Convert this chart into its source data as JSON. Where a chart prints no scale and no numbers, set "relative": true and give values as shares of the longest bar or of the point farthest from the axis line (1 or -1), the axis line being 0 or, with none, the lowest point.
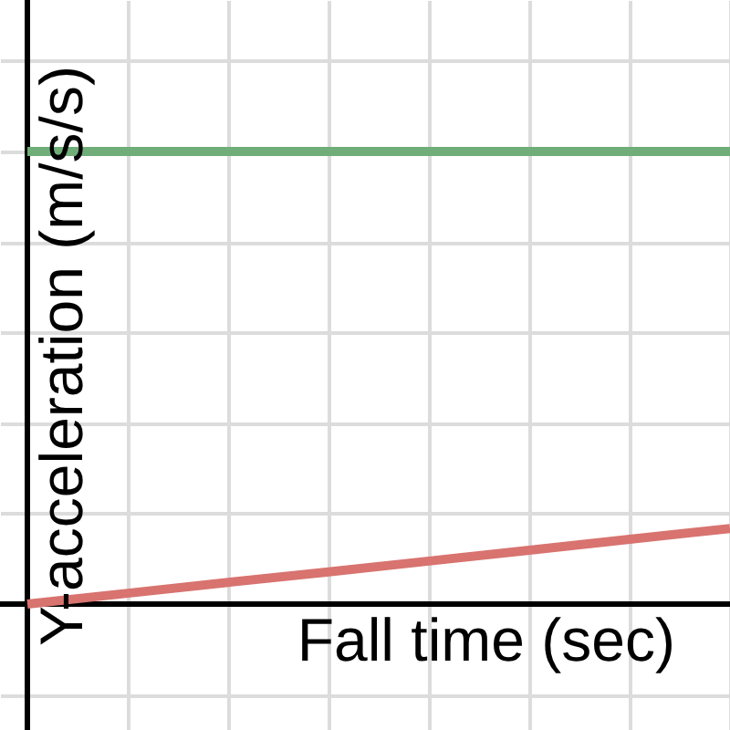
{
  "chart_data": {
    "type": "line",
    "xlabel": "Fall time (sec)",
    "ylabel": "Y-acceleration (m/s/s)",
    "relative": true,
    "grid": true,
    "categories": [
      null,
      null,
      null,
      null,
      null,
      null,
      null,
      null
    ],
    "series": [
      {
        "color": "#70ad78",
        "values": [
          1,
          1,
          1,
          1,
          1,
          1,
          1,
          1
        ]
      },
      {
        "color": "#d8736f",
        "values": [
          0,
          0.024,
          0.048,
          0.071,
          0.095,
          0.119,
          0.143,
          0.167
        ]
      }
    ]
  }
}
